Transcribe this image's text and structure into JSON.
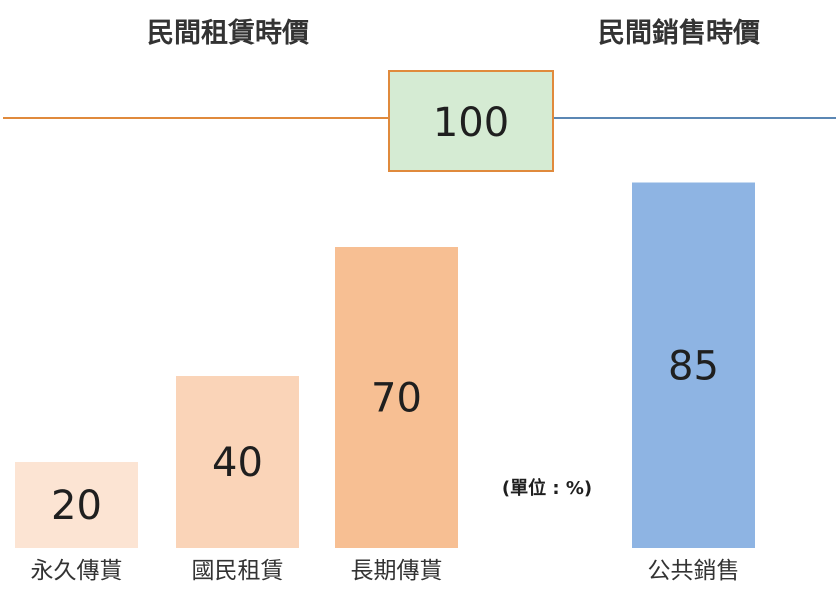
{
  "chart_data": {
    "type": "bar",
    "title": "",
    "xlabel": "",
    "ylabel": "",
    "unit_note": "(單位 : %)",
    "ylim": [
      0,
      100
    ],
    "reference": {
      "value": 100,
      "left_heading": "民間租賃時價",
      "right_heading": "民間銷售時價"
    },
    "categories": [
      "永久傳貰",
      "國民租賃",
      "長期傳貰",
      "公共銷售"
    ],
    "values": [
      20,
      40,
      70,
      85
    ],
    "groups": [
      "民間租賃時價",
      "民間租賃時價",
      "民間租賃時價",
      "民間銷售時價"
    ],
    "colors": {
      "bars": [
        "#fce4d3",
        "#fad4b8",
        "#f7bf93",
        "#8eb4e3"
      ],
      "rental_line": "#e08a3c",
      "sales_line": "#5b87b4",
      "reference_box_fill": "#d5ebd3",
      "reference_box_border": "#e08a3c"
    }
  }
}
